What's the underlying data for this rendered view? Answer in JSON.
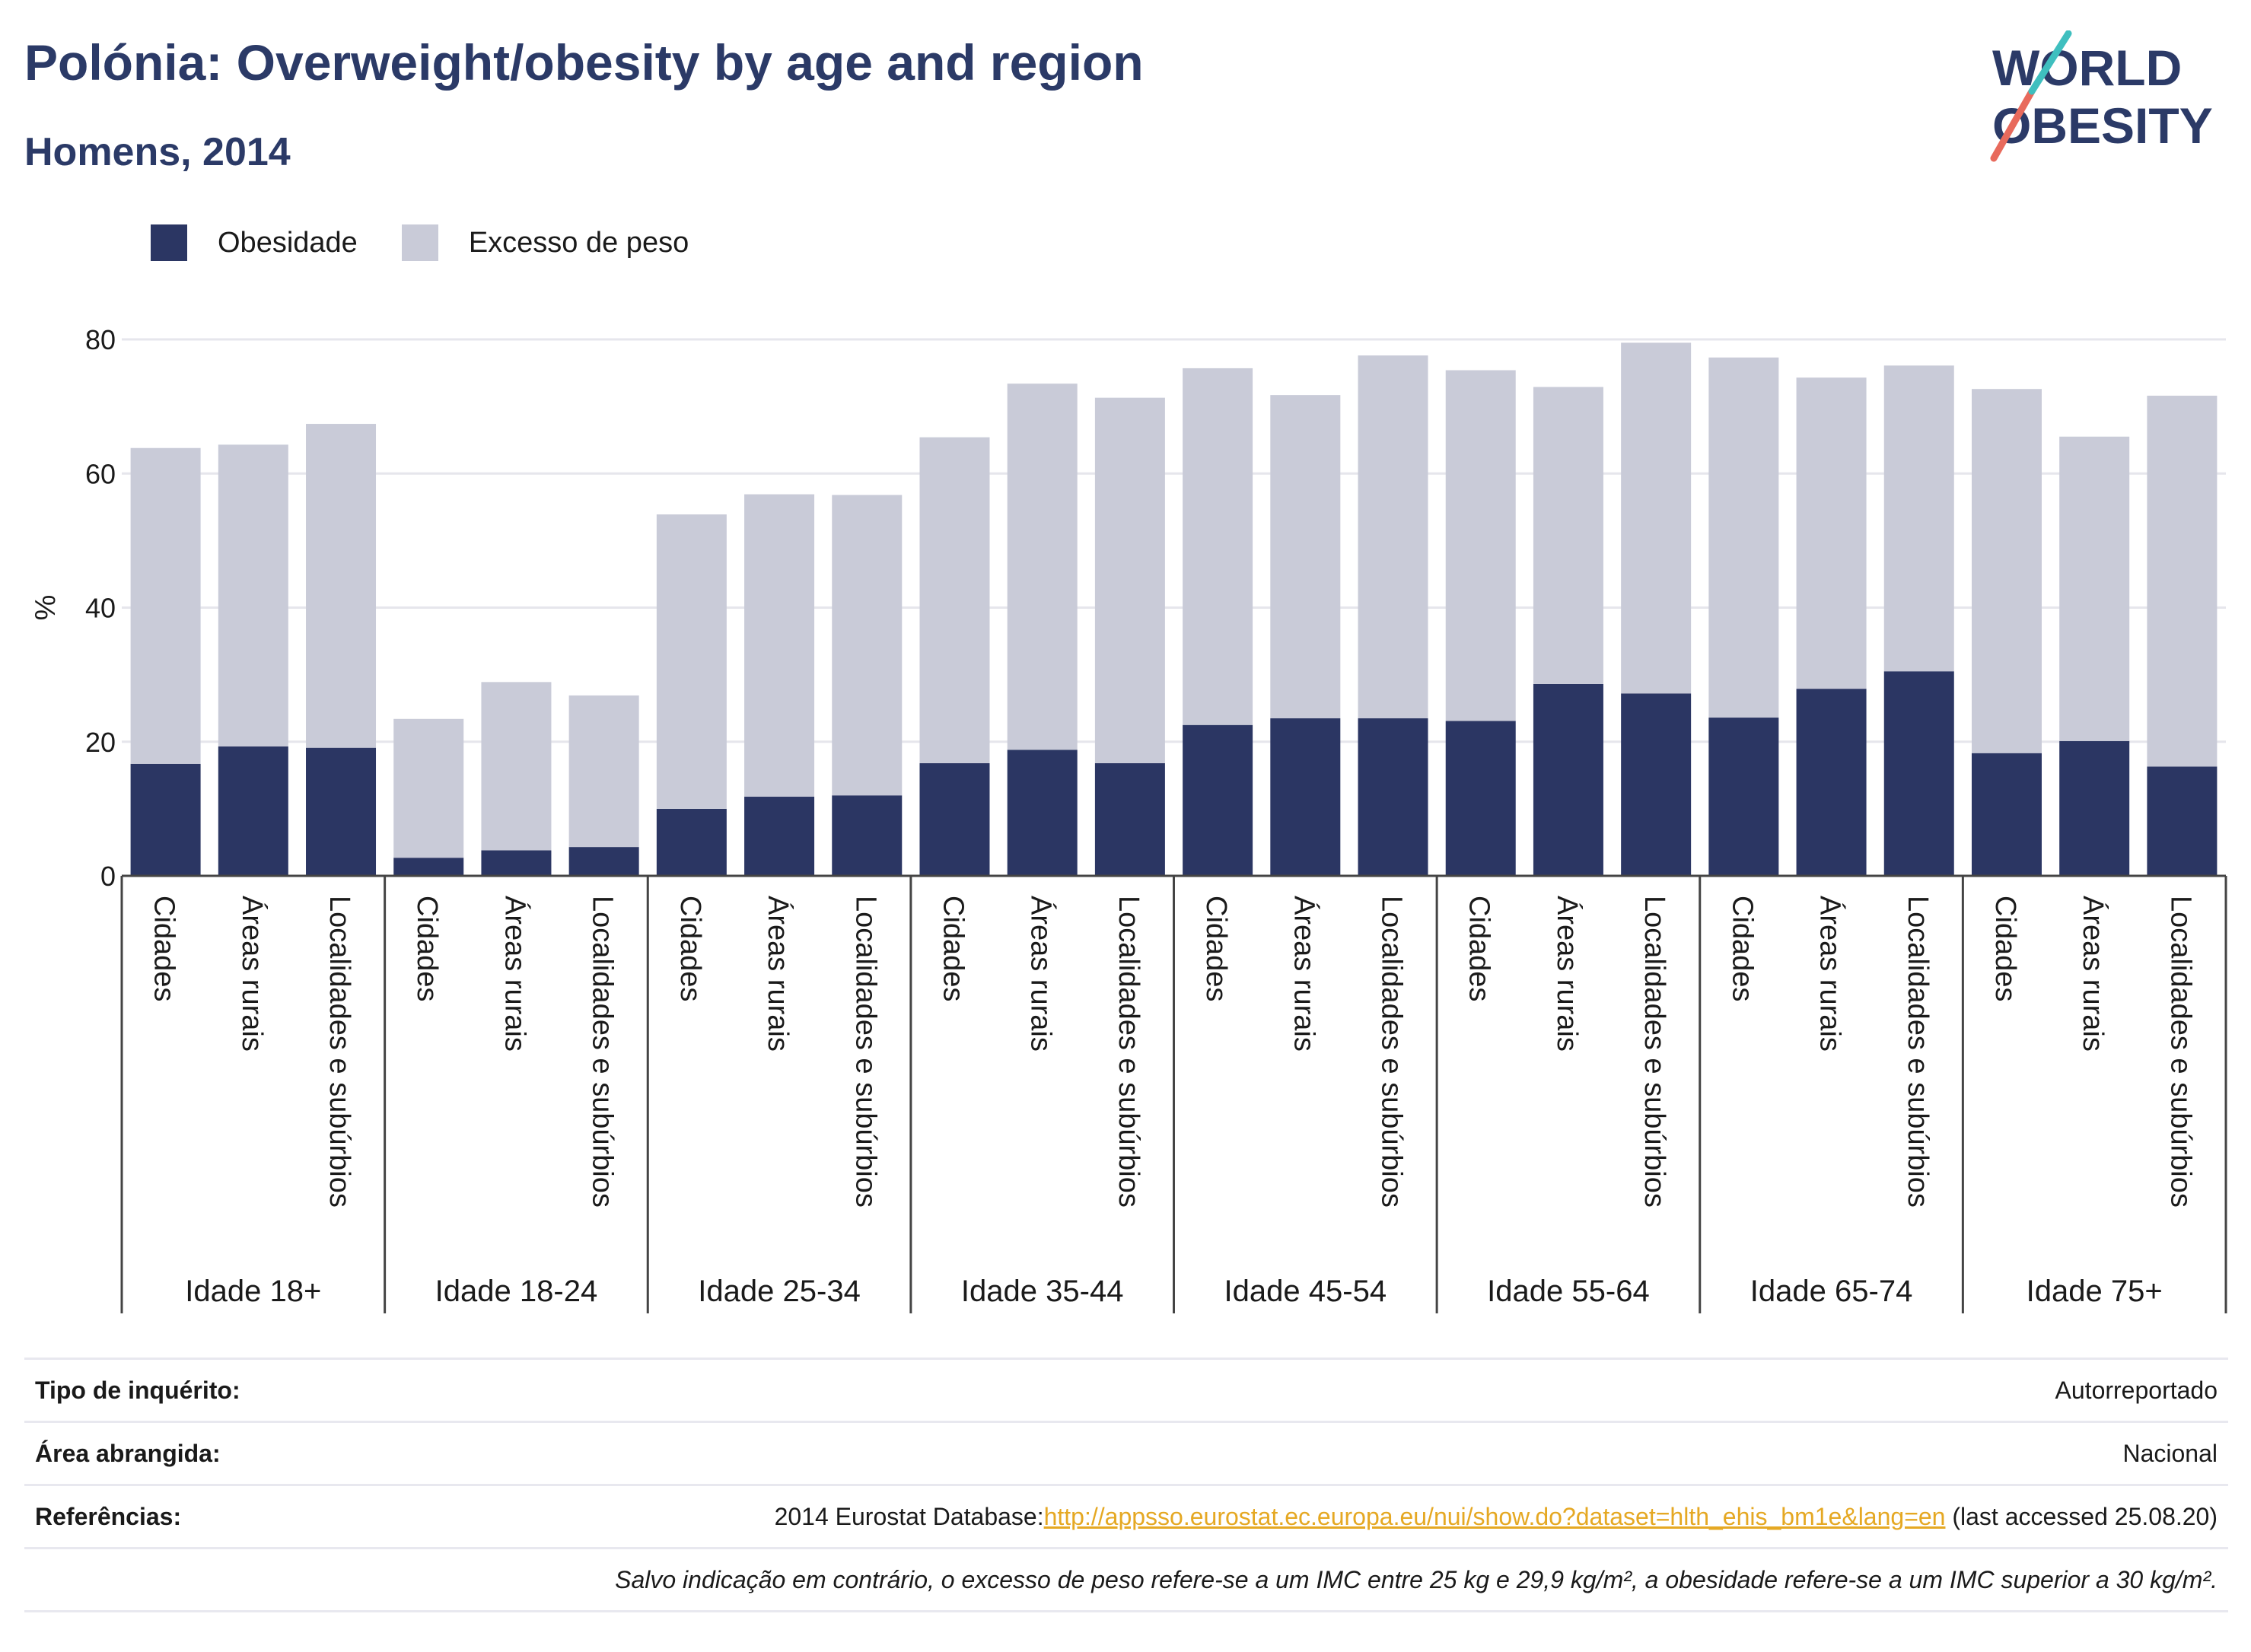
{
  "header": {
    "title": "Polónia: Overweight/obesity by age and region",
    "subtitle": "Homens, 2014"
  },
  "logo": {
    "line1": "WORLD",
    "line2": "OBESITY"
  },
  "colors": {
    "obesity": "#2b3663",
    "overweight": "#c9cbd8",
    "title": "#2b3a67",
    "link": "#e5a823"
  },
  "legend": [
    {
      "label": "Obesidade",
      "color": "#2b3663"
    },
    {
      "label": "Excesso de peso",
      "color": "#c9cbd8"
    }
  ],
  "chart_data": {
    "type": "bar",
    "stacked": true,
    "ylabel": "%",
    "ylim": [
      0,
      80
    ],
    "yticks": [
      0,
      20,
      40,
      60,
      80
    ],
    "grid": true,
    "legend_position": "top-left",
    "groups": [
      "Idade 18+",
      "Idade 18-24",
      "Idade 25-34",
      "Idade 35-44",
      "Idade 45-54",
      "Idade 55-64",
      "Idade 65-74",
      "Idade 75+"
    ],
    "subcategories": [
      "Cidades",
      "Áreas rurais",
      "Localidades e subúrbios"
    ],
    "series": [
      {
        "name": "Obesidade",
        "values": [
          16.7,
          19.3,
          19.1,
          2.7,
          3.8,
          4.3,
          10.0,
          11.8,
          12.0,
          16.8,
          18.8,
          16.8,
          22.5,
          23.5,
          23.5,
          23.1,
          28.6,
          27.2,
          23.6,
          27.9,
          30.5,
          18.3,
          20.1,
          16.3
        ]
      },
      {
        "name": "Excesso de peso",
        "values": [
          47.1,
          45.0,
          48.3,
          20.7,
          25.1,
          22.6,
          43.9,
          45.1,
          44.8,
          48.6,
          54.6,
          54.5,
          53.2,
          48.2,
          54.1,
          52.3,
          44.3,
          52.3,
          53.7,
          46.4,
          45.6,
          54.3,
          45.4,
          55.3
        ]
      }
    ]
  },
  "info": {
    "survey_key": "Tipo de inquérito:",
    "survey_value": "Autorreportado",
    "area_key": "Área abrangida:",
    "area_value": "Nacional",
    "ref_key": "Referências:",
    "ref_prefix": "2014 Eurostat Database:",
    "ref_link": "http://appsso.eurostat.ec.europa.eu/nui/show.do?dataset=hlth_ehis_bm1e&lang=en",
    "ref_suffix": " (last accessed 25.08.20)",
    "note": "Salvo indicação em contrário, o excesso de peso refere-se a um IMC entre 25 kg e 29,9 kg/m², a obesidade refere-se a um IMC superior a 30 kg/m²."
  }
}
